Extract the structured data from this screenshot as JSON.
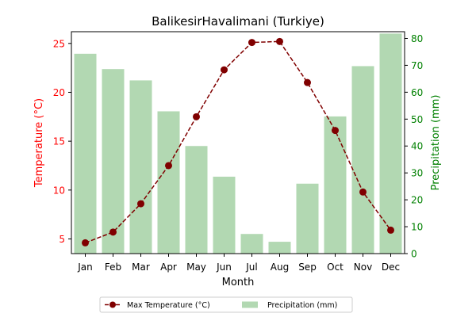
{
  "chart_data": {
    "type": "bar+line",
    "title": "BalikesirHavalimani (Turkiye)",
    "xlabel": "Month",
    "categories": [
      "Jan",
      "Feb",
      "Mar",
      "Apr",
      "May",
      "Jun",
      "Jul",
      "Aug",
      "Sep",
      "Oct",
      "Nov",
      "Dec"
    ],
    "left_axis": {
      "label": "Temperature (°C)",
      "color": "#ff0000",
      "ylim": [
        3.5,
        26.2
      ],
      "ticks": [
        5,
        10,
        15,
        20,
        25
      ]
    },
    "right_axis": {
      "label": "Precipitation (mm)",
      "color": "#008000",
      "ylim": [
        0,
        82.5
      ],
      "ticks": [
        0,
        10,
        20,
        30,
        40,
        50,
        60,
        70,
        80
      ]
    },
    "series": [
      {
        "name": "Max Temperature (°C)",
        "kind": "line",
        "axis": "left",
        "color": "#800000",
        "style": "dashed",
        "marker": "circle",
        "values": [
          4.6,
          5.7,
          8.6,
          12.5,
          17.5,
          22.3,
          25.1,
          25.2,
          21.0,
          16.1,
          9.8,
          5.9
        ]
      },
      {
        "name": "Precipitation (mm)",
        "kind": "bar",
        "axis": "right",
        "color": "#b2d8b2",
        "values": [
          74.3,
          68.6,
          64.4,
          52.9,
          40.0,
          28.6,
          7.3,
          4.4,
          26.0,
          51.0,
          69.7,
          81.8
        ]
      }
    ],
    "legend": {
      "placement": "bottom-center",
      "order": [
        0,
        1
      ]
    },
    "grid": false
  }
}
